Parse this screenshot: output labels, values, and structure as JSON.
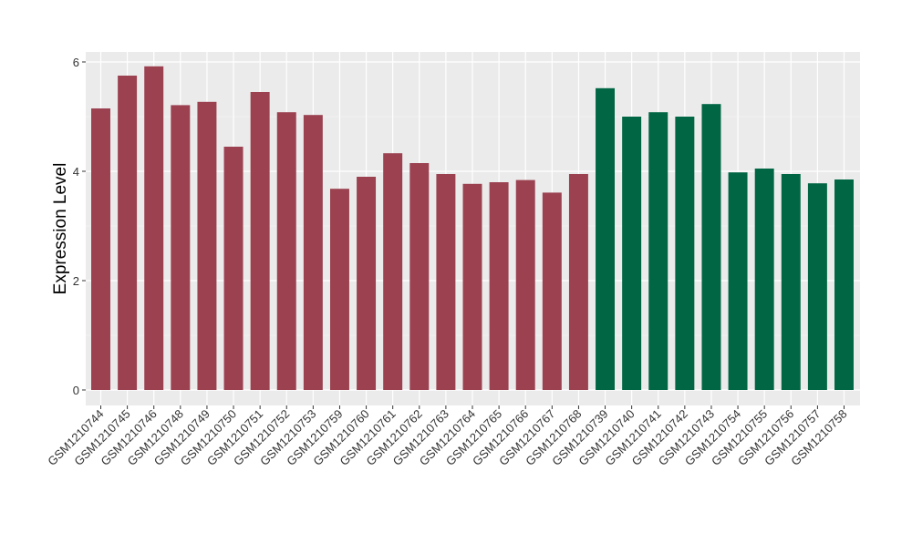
{
  "chart_data": {
    "type": "bar",
    "title": "",
    "xlabel": "",
    "ylabel": "Expression Level",
    "ylim": [
      0,
      6.0
    ],
    "yticks": [
      0,
      2,
      4,
      6
    ],
    "ytick_labels": [
      "0",
      "2",
      "4",
      "6"
    ],
    "grid": true,
    "legend": "none",
    "colors": {
      "group1": "#9b4150",
      "group2": "#006644",
      "panel_bg": "#ebebeb",
      "grid": "#ffffff"
    },
    "categories": [
      "GSM1210744",
      "GSM1210745",
      "GSM1210746",
      "GSM1210748",
      "GSM1210749",
      "GSM1210750",
      "GSM1210751",
      "GSM1210752",
      "GSM1210753",
      "GSM1210759",
      "GSM1210760",
      "GSM1210761",
      "GSM1210762",
      "GSM1210763",
      "GSM1210764",
      "GSM1210765",
      "GSM1210766",
      "GSM1210767",
      "GSM1210768",
      "GSM1210739",
      "GSM1210740",
      "GSM1210741",
      "GSM1210742",
      "GSM1210743",
      "GSM1210754",
      "GSM1210755",
      "GSM1210756",
      "GSM1210757",
      "GSM1210758"
    ],
    "values": [
      5.15,
      5.75,
      5.92,
      5.21,
      5.27,
      4.45,
      5.45,
      5.08,
      5.03,
      3.68,
      3.9,
      4.33,
      4.15,
      3.95,
      3.77,
      3.8,
      3.84,
      3.61,
      3.95,
      5.52,
      5.0,
      5.08,
      5.0,
      5.23,
      3.98,
      4.05,
      3.95,
      3.78,
      3.85
    ],
    "groups": [
      "group1",
      "group1",
      "group1",
      "group1",
      "group1",
      "group1",
      "group1",
      "group1",
      "group1",
      "group1",
      "group1",
      "group1",
      "group1",
      "group1",
      "group1",
      "group1",
      "group1",
      "group1",
      "group1",
      "group2",
      "group2",
      "group2",
      "group2",
      "group2",
      "group2",
      "group2",
      "group2",
      "group2",
      "group2"
    ]
  }
}
